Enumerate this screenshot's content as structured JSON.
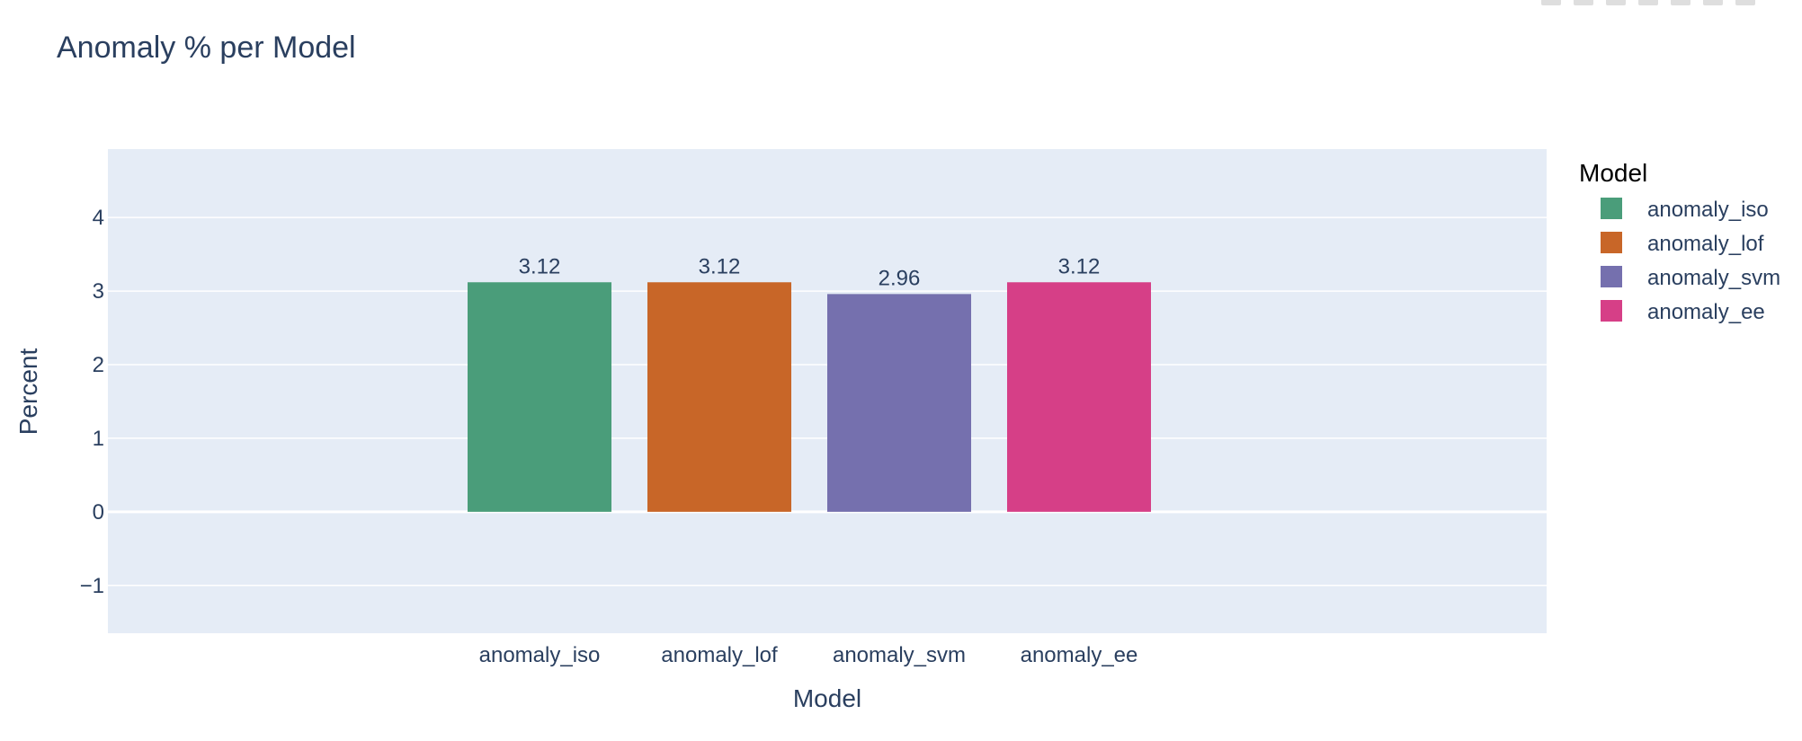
{
  "colors": {
    "plot_bg": "#e5ecf6",
    "grid": "#ffffff",
    "text": "#2a3f5f",
    "series": [
      "#4a9d7a",
      "#c86628",
      "#7570ae",
      "#d63f87"
    ]
  },
  "chart_data": {
    "type": "bar",
    "title": "Anomaly % per Model",
    "xlabel": "Model",
    "ylabel": "Percent",
    "categories": [
      "anomaly_iso",
      "anomaly_lof",
      "anomaly_svm",
      "anomaly_ee"
    ],
    "values": [
      3.12,
      3.12,
      2.96,
      3.12
    ],
    "value_labels": [
      "3.12",
      "3.12",
      "2.96",
      "3.12"
    ],
    "ylim": [
      -1.65,
      4.93
    ],
    "yticks": [
      -1,
      0,
      1,
      2,
      3,
      4
    ],
    "ytick_labels": [
      "−1",
      "0",
      "1",
      "2",
      "3",
      "4"
    ],
    "grid": true,
    "legend": {
      "title": "Model",
      "position": "right",
      "entries": [
        "anomaly_iso",
        "anomaly_lof",
        "anomaly_svm",
        "anomaly_ee"
      ]
    }
  }
}
